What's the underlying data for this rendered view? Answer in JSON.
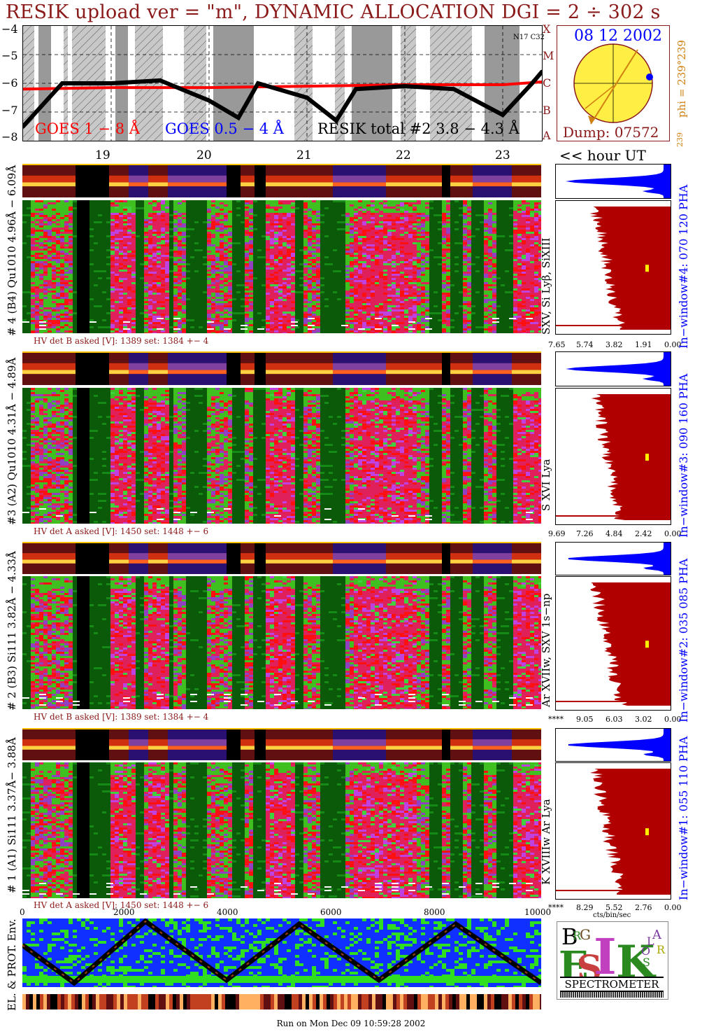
{
  "title": "RESIK upload ver = \"m\", DYNAMIC ALLOCATION  DGI =   2 ÷ 302 s",
  "goes": {
    "yticks": [
      "−4",
      "−5",
      "−6",
      "−7",
      "−8"
    ],
    "legend": {
      "goes18": "GOES 1 − 8 Å",
      "goes054": "GOES 0.5 − 4 Å",
      "resik": "RESIK total #2  3.8 − 4.3 Å"
    },
    "noaa_label": "N17 C32",
    "class_labels": [
      "X",
      "M",
      "C",
      "B",
      "A"
    ],
    "hours": [
      "19",
      "20",
      "21",
      "22",
      "23"
    ],
    "hour_ut_label": "<< hour UT"
  },
  "sun_inset": {
    "date": "08 12 2002",
    "dump": "Dump: 07572",
    "phi": "phi = 239°239",
    "phi_small": "239"
  },
  "channels": [
    {
      "id": "ch4",
      "left_label": "# 4 (B4) Qu1010 4.96Å − 6.09Å",
      "right_label": "SXV, Si Lyβ, SiXIII",
      "pha_label": "In−window#4:  070 120 PHA",
      "hv": "HV det B asked [V]:  1389 set:  1384  +−    4",
      "xticks": [
        "7.65",
        "5.74",
        "3.82",
        "1.91",
        "0.00"
      ]
    },
    {
      "id": "ch3",
      "left_label": "#3 (A2) Qu1010  4.31Å − 4.89Å",
      "right_label": "S XVI Lya",
      "pha_label": "In−window#3:  090 160 PHA",
      "hv": "HV det A asked [V]:  1450 set:  1448  +−    6",
      "xticks": [
        "9.69",
        "7.26",
        "4.84",
        "2.42",
        "0.00"
      ]
    },
    {
      "id": "ch2",
      "left_label": "# 2 (B3) Si111  3.82Å − 4.33Å",
      "right_label": "Ar XVIIw,  SXV 1s−np",
      "pha_label": "In−window#2:  035 085 PHA",
      "hv": "HV det B asked [V]:  1389 set:  1384  +−    4",
      "xticks": [
        "****",
        "9.05",
        "6.03",
        "3.02",
        "0.00"
      ]
    },
    {
      "id": "ch1",
      "left_label": "# 1 (A1) Si111  3.37Å− 3.88Å",
      "right_label": "K XVIIIw  Ar Lya",
      "pha_label": "In−window#1:  055 110 PHA",
      "hv": "HV det A asked [V]:  1450 set:  1448  +−    6",
      "xticks": [
        "****",
        "8.29",
        "5.52",
        "2.76",
        "0.00"
      ]
    }
  ],
  "bottom_axis": {
    "ticks": [
      "0",
      "2000",
      "4000",
      "6000",
      "8000",
      "10000"
    ],
    "units": "cts/bin/sec"
  },
  "env": {
    "label": "EL. & PROT. Env."
  },
  "logo": {
    "text": "SPECTROMETER",
    "letters": [
      "B",
      "R",
      "G",
      "E",
      "S",
      "I",
      "K",
      "S",
      "O",
      "L",
      "A",
      "R"
    ]
  },
  "footer": "Run on Mon Dec 09 10:59:28 2002",
  "colors": {
    "title": "#8b1a1a",
    "goes18": "#ff0000",
    "goes054": "#0000ff",
    "pha_blue": "#0000ff",
    "spectrum_fill": "#b00000",
    "sun": "#ffee44",
    "orbit": "#000000"
  },
  "chart_data": {
    "type": "line",
    "title": "",
    "xlabel": "hour UT",
    "ylabel": "",
    "ylim": [
      -8,
      -4
    ],
    "xlim": [
      18.1,
      23.4
    ],
    "series": [
      {
        "name": "GOES 1 − 8 Å",
        "x": [
          18.1,
          19,
          20,
          21,
          22,
          23,
          23.4
        ],
        "values": [
          -6.2,
          -6.15,
          -6.15,
          -6.1,
          -6.05,
          -6.05,
          -5.95
        ]
      },
      {
        "name": "RESIK total #2  3.8 − 4.3 Å",
        "x": [
          18.1,
          18.5,
          19,
          19.5,
          20,
          20.3,
          20.5,
          21,
          21.3,
          21.5,
          22,
          22.5,
          23,
          23.3,
          23.4
        ],
        "values": [
          -7.5,
          -6.0,
          -6.0,
          -5.9,
          -6.6,
          -7.2,
          -6.0,
          -6.5,
          -7.3,
          -6.2,
          -6.1,
          -6.2,
          -7.1,
          -6.0,
          -5.6
        ]
      }
    ]
  }
}
